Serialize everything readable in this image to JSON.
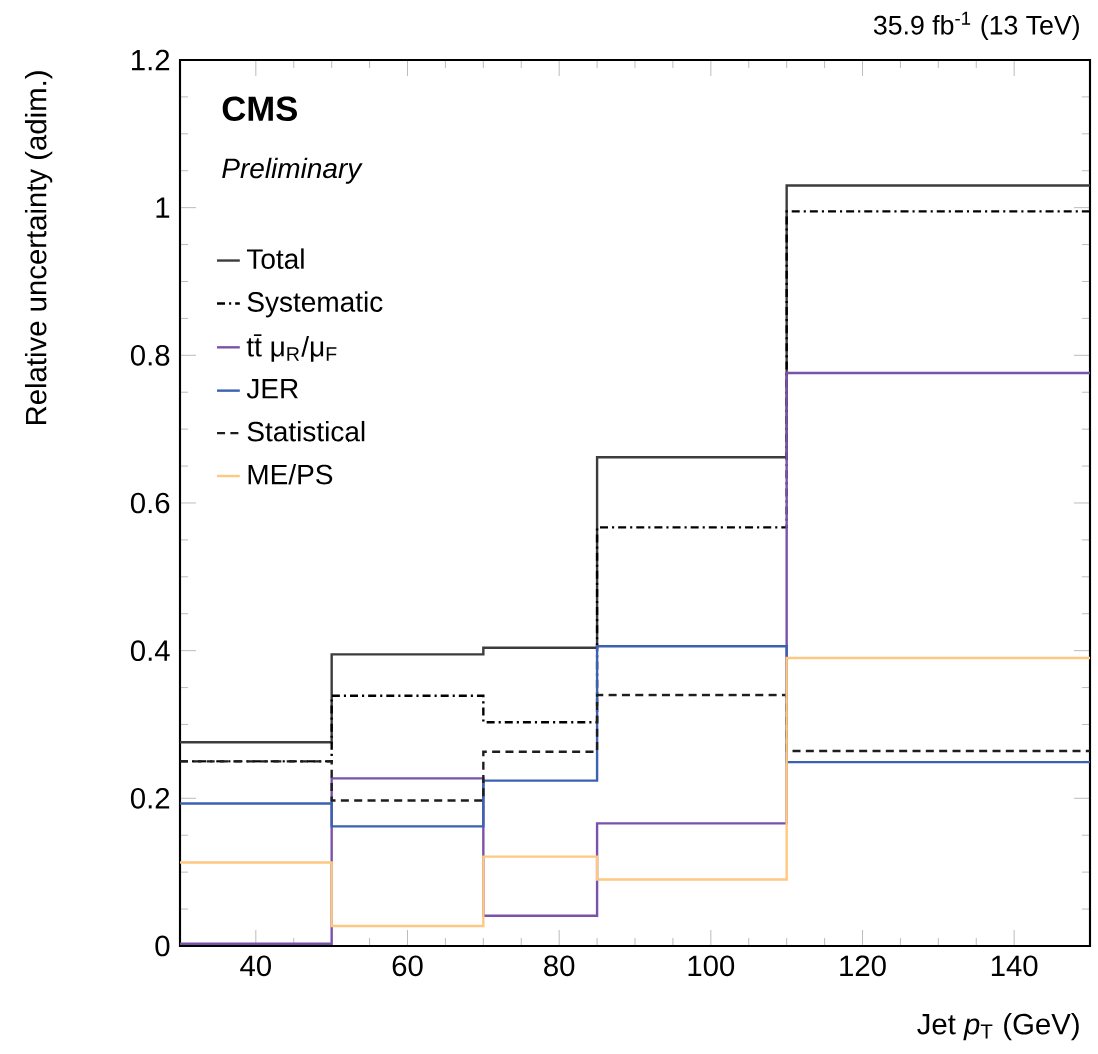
{
  "chart_data": {
    "type": "histogram",
    "title": "35.9 fb$^{-1}$ (13 TeV)",
    "xlabel": "Jet *p*$_{T}$ (GeV)",
    "ylabel": "Relative uncertainty (adim.)",
    "annotations": [
      "CMS",
      "Preliminary"
    ],
    "bins": [
      30,
      50,
      70,
      85,
      110,
      150
    ],
    "series": [
      {
        "name": "Total",
        "color": "#3c3c3c",
        "line_style": "solid",
        "values": [
          0.276,
          0.395,
          0.404,
          0.662,
          1.03
        ]
      },
      {
        "name": "Systematic",
        "color": "#000000",
        "line_style": "dashdot",
        "values": [
          0.25,
          0.339,
          0.303,
          0.567,
          0.995
        ]
      },
      {
        "name": "tt̄ μ$_{R}$/μ$_{F}$",
        "color": "#7b52ab",
        "line_style": "solid",
        "values": [
          0.003,
          0.227,
          0.041,
          0.166,
          0.776
        ]
      },
      {
        "name": "JER",
        "color": "#3a62b0",
        "line_style": "solid",
        "values": [
          0.193,
          0.162,
          0.224,
          0.406,
          0.249
        ]
      },
      {
        "name": "Statistical",
        "color": "#1e1e1e",
        "line_style": "dashed",
        "values": [
          0.25,
          0.197,
          0.263,
          0.34,
          0.264
        ]
      },
      {
        "name": "ME/PS",
        "color": "#ffc880",
        "line_style": "solid",
        "values": [
          0.113,
          0.027,
          0.121,
          0.09,
          0.39
        ]
      }
    ],
    "xlim": [
      30,
      150
    ],
    "xticks": [
      40,
      60,
      80,
      100,
      120,
      140
    ],
    "ylim": [
      0,
      1.2
    ],
    "yticks": [
      0,
      0.2,
      0.4,
      0.6,
      0.8,
      1,
      1.2
    ],
    "legend": "top left",
    "marker": "none"
  }
}
